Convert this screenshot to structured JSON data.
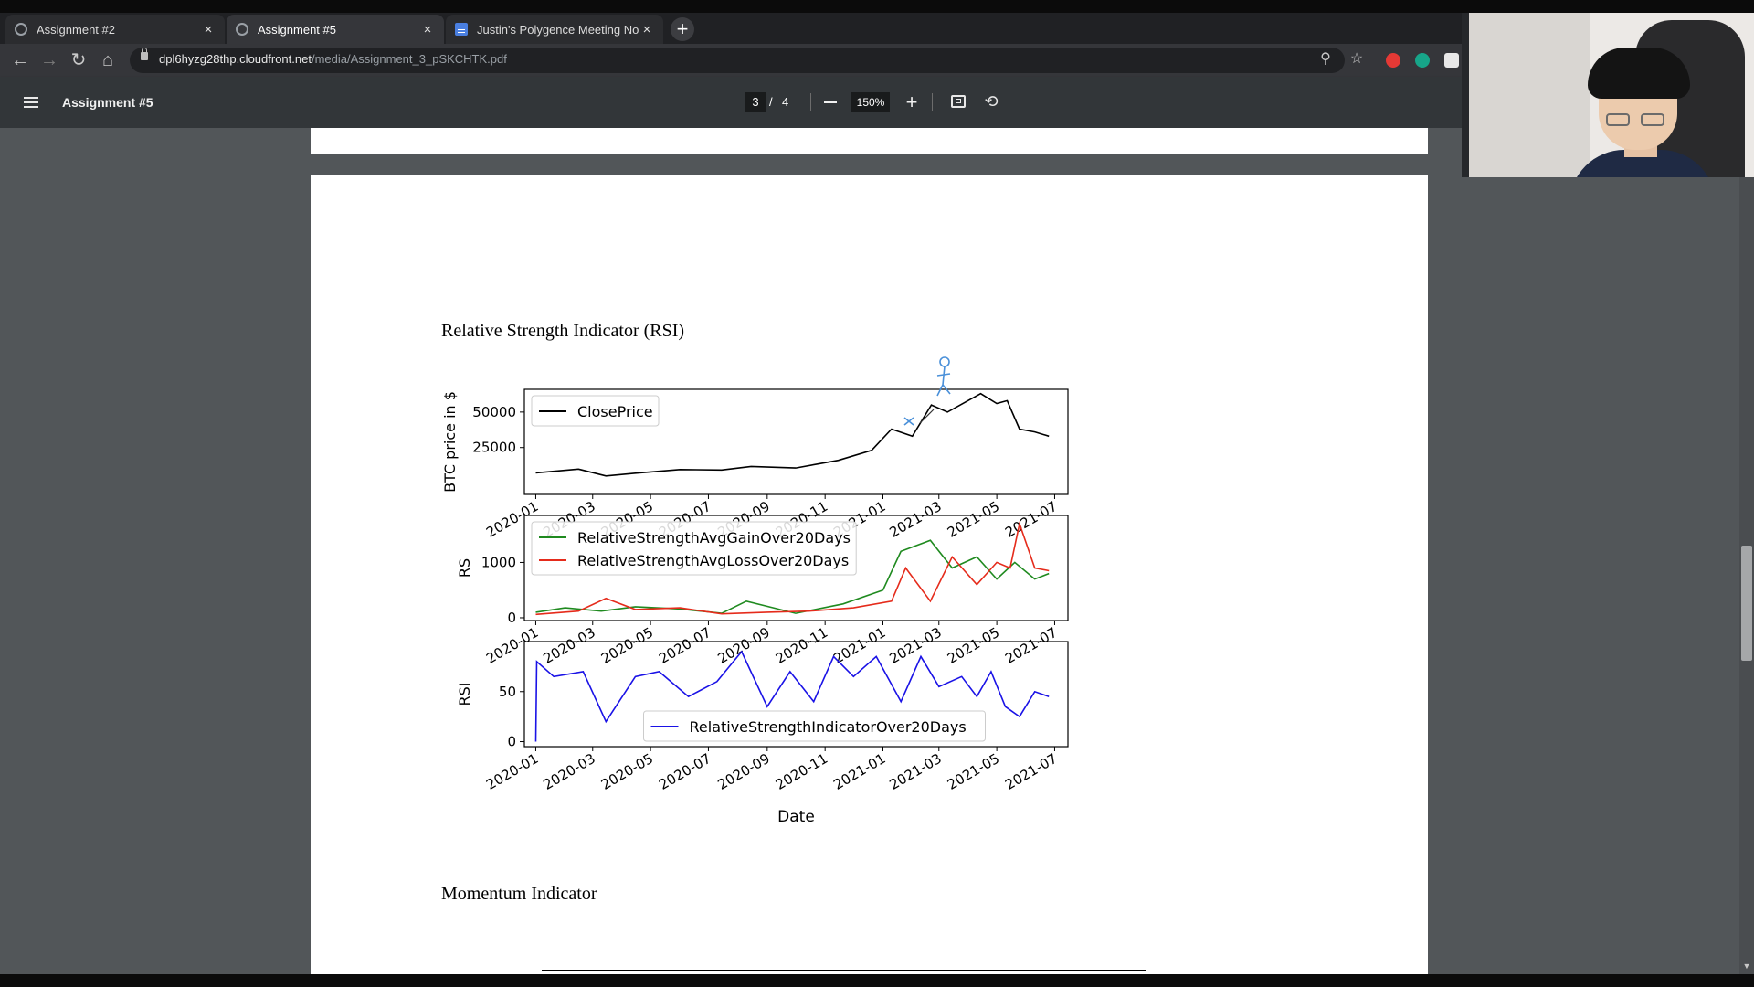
{
  "browser": {
    "tabs": [
      {
        "title": "Assignment #2",
        "active": false,
        "favicon": "globe-icon"
      },
      {
        "title": "Assignment #5",
        "active": true,
        "favicon": "globe-icon"
      },
      {
        "title": "Justin's Polygence Meeting Note",
        "active": false,
        "favicon": "google-docs-icon"
      }
    ],
    "new_tab_label": "+",
    "close_glyph": "×",
    "url_host": "dpl6hyzg28thp.cloudfront.net",
    "url_path": "/media/Assignment_3_pSKCHTK.pdf"
  },
  "pdf_viewer": {
    "title": "Assignment #5",
    "current_page": "3",
    "page_separator": "/",
    "total_pages": "4",
    "zoom": "150%"
  },
  "document": {
    "heading_rsi": "Relative Strength Indicator (RSI)",
    "heading_momentum": "Momentum Indicator"
  },
  "chart_data": [
    {
      "type": "line",
      "ylabel": "BTC price in $",
      "yticks": [
        "25000",
        "50000"
      ],
      "ylim": [
        -8000,
        66000
      ],
      "xticks": [
        "2020-01",
        "2020-03",
        "2020-05",
        "2020-07",
        "2020-09",
        "2020-11",
        "2021-01",
        "2021-03",
        "2021-05",
        "2021-07"
      ],
      "legend": "top-left",
      "series": [
        {
          "name": "ClosePrice",
          "color": "#000000",
          "x": [
            "2020-01-01",
            "2020-02-15",
            "2020-03-15",
            "2020-04-15",
            "2020-06-01",
            "2020-07-15",
            "2020-08-15",
            "2020-10-01",
            "2020-11-15",
            "2020-12-20",
            "2021-01-10",
            "2021-02-01",
            "2021-02-21",
            "2021-03-10",
            "2021-04-14",
            "2021-05-01",
            "2021-05-12",
            "2021-05-25",
            "2021-06-10",
            "2021-06-25"
          ],
          "y": [
            7200,
            9800,
            5000,
            6900,
            9500,
            9200,
            11700,
            10600,
            16000,
            23000,
            38000,
            33000,
            55000,
            50000,
            63000,
            56000,
            58000,
            38000,
            36000,
            33000
          ]
        }
      ]
    },
    {
      "type": "line",
      "ylabel": "RS",
      "yticks": [
        "0",
        "1000"
      ],
      "ylim": [
        -50,
        1850
      ],
      "xticks": [
        "2020-01",
        "2020-03",
        "2020-05",
        "2020-07",
        "2020-09",
        "2020-11",
        "2021-01",
        "2021-03",
        "2021-05",
        "2021-07"
      ],
      "legend": "top-left",
      "series": [
        {
          "name": "RelativeStrengthAvgGainOver20Days",
          "color": "#1f8a1f",
          "x": [
            "2020-01-01",
            "2020-02-01",
            "2020-03-10",
            "2020-04-15",
            "2020-06-01",
            "2020-07-15",
            "2020-08-10",
            "2020-10-01",
            "2020-11-20",
            "2021-01-01",
            "2021-01-20",
            "2021-02-20",
            "2021-03-15",
            "2021-04-10",
            "2021-05-01",
            "2021-05-20",
            "2021-06-10",
            "2021-06-25"
          ],
          "y": [
            100,
            180,
            120,
            200,
            160,
            80,
            300,
            80,
            250,
            500,
            1200,
            1400,
            900,
            1100,
            700,
            1000,
            700,
            800
          ]
        },
        {
          "name": "RelativeStrengthAvgLossOver20Days",
          "color": "#e52b1b",
          "x": [
            "2020-01-01",
            "2020-02-15",
            "2020-03-15",
            "2020-04-15",
            "2020-06-01",
            "2020-07-15",
            "2020-09-01",
            "2020-10-15",
            "2020-12-01",
            "2021-01-10",
            "2021-01-25",
            "2021-02-20",
            "2021-03-15",
            "2021-04-10",
            "2021-05-01",
            "2021-05-15",
            "2021-05-25",
            "2021-06-10",
            "2021-06-25"
          ],
          "y": [
            60,
            120,
            350,
            150,
            180,
            70,
            100,
            120,
            180,
            300,
            900,
            300,
            1100,
            600,
            1000,
            900,
            1700,
            900,
            850
          ]
        }
      ]
    },
    {
      "type": "line",
      "ylabel": "RSI",
      "xlabel": "Date",
      "yticks": [
        "0",
        "50"
      ],
      "ylim": [
        -5,
        100
      ],
      "xticks": [
        "2020-01",
        "2020-03",
        "2020-05",
        "2020-07",
        "2020-09",
        "2020-11",
        "2021-01",
        "2021-03",
        "2021-05",
        "2021-07"
      ],
      "legend": "bottom-center",
      "series": [
        {
          "name": "RelativeStrengthIndicatorOver20Days",
          "color": "#1a12e6",
          "x": [
            "2020-01-01",
            "2020-01-02",
            "2020-01-20",
            "2020-02-20",
            "2020-03-15",
            "2020-04-15",
            "2020-05-10",
            "2020-06-10",
            "2020-07-10",
            "2020-08-05",
            "2020-09-01",
            "2020-09-25",
            "2020-10-20",
            "2020-11-10",
            "2020-12-01",
            "2020-12-25",
            "2021-01-20",
            "2021-02-10",
            "2021-03-01",
            "2021-03-25",
            "2021-04-10",
            "2021-04-25",
            "2021-05-10",
            "2021-05-25",
            "2021-06-10",
            "2021-06-25"
          ],
          "y": [
            0,
            80,
            65,
            70,
            20,
            65,
            70,
            45,
            60,
            90,
            35,
            70,
            40,
            85,
            65,
            85,
            40,
            85,
            55,
            65,
            45,
            70,
            35,
            25,
            50,
            45
          ]
        }
      ]
    }
  ]
}
